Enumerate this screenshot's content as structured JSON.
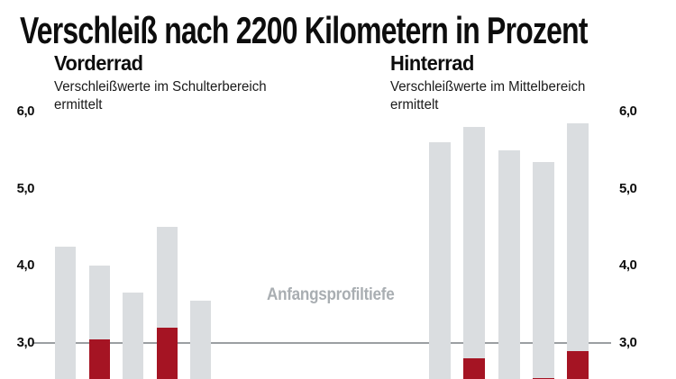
{
  "title": "Verschleiß nach 2200 Kilometern in Prozent",
  "chart_data": {
    "type": "bar",
    "title": "Verschleiß nach 2200 Kilometern in Prozent",
    "value_unit": "Prozent (Profiltiefe in mm-Skala 2,5–6,0)",
    "y_ticks": [
      "6,0",
      "5,0",
      "4,0",
      "3,0"
    ],
    "y_tick_values": [
      6.0,
      5.0,
      4.0,
      3.0
    ],
    "y_axis_sides": "both",
    "visible_y_range": [
      2.53,
      6.15
    ],
    "grid": "reference line at 3.0 only",
    "reference_line": {
      "value": 3.0,
      "label": "Anfangsprofiltiefe"
    },
    "colors": {
      "bar_total": "#dadde0",
      "bar_measured": "#a51423",
      "reference_line": "#9b9fa2",
      "reference_label": "#a9aeb2"
    },
    "legend": "gray = full bar (cropped at bottom edge), dark red = lower segment topping at measured value",
    "panels": [
      {
        "id": "vorderrad",
        "name": "Vorderrad",
        "subtitle_lines": [
          "Verschleißwerte im Schulterbereich",
          "ermittelt"
        ],
        "bars": [
          {
            "total": 4.25,
            "red_top": null
          },
          {
            "total": 4.0,
            "red_top": 3.05
          },
          {
            "total": 3.65,
            "red_top": null
          },
          {
            "total": 4.5,
            "red_top": 3.2
          },
          {
            "total": 3.55,
            "red_top": null
          }
        ]
      },
      {
        "id": "hinterrad",
        "name": "Hinterrad",
        "subtitle_lines": [
          "Verschleißwerte im Mittelbereich",
          "ermittelt"
        ],
        "bars": [
          {
            "total": 5.6,
            "red_top": null
          },
          {
            "total": 5.8,
            "red_top": 2.8
          },
          {
            "total": 5.5,
            "red_top": null
          },
          {
            "total": 5.35,
            "red_top": 2.55
          },
          {
            "total": 5.85,
            "red_top": 2.9
          }
        ]
      }
    ]
  }
}
